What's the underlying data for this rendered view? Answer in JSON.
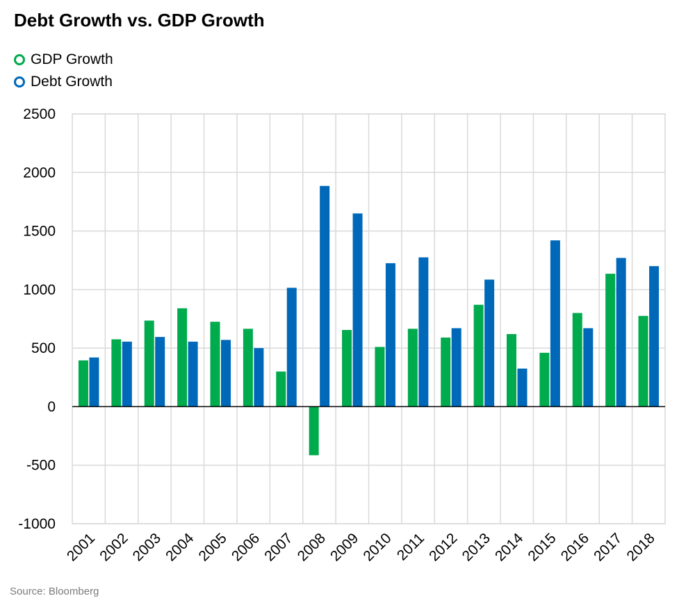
{
  "title": "Debt Growth vs. GDP Growth",
  "source": "Source: Bloomberg",
  "colors": {
    "gdp": "#00ab4e",
    "debt": "#0068b9",
    "grid": "#d9d9d9",
    "axis": "#000000"
  },
  "chart_data": {
    "type": "bar",
    "title": "Debt Growth vs. GDP Growth",
    "xlabel": "",
    "ylabel": "",
    "ylim": [
      -1000,
      2500
    ],
    "yticks": [
      2500,
      2000,
      1500,
      1000,
      500,
      0,
      -500,
      -1000
    ],
    "grid": true,
    "legend_position": "top-left",
    "categories": [
      "2001",
      "2002",
      "2003",
      "2004",
      "2005",
      "2006",
      "2007",
      "2008",
      "2009",
      "2010",
      "2011",
      "2012",
      "2013",
      "2014",
      "2015",
      "2016",
      "2017",
      "2018"
    ],
    "series": [
      {
        "name": "GDP Growth",
        "color": "#00ab4e",
        "values": [
          395,
          575,
          735,
          840,
          725,
          665,
          300,
          -415,
          655,
          510,
          665,
          590,
          870,
          620,
          460,
          800,
          1135,
          775
        ]
      },
      {
        "name": "Debt Growth",
        "color": "#0068b9",
        "values": [
          420,
          555,
          595,
          555,
          570,
          500,
          1015,
          1885,
          1650,
          1225,
          1275,
          670,
          1085,
          325,
          1420,
          670,
          1270,
          1200
        ]
      }
    ]
  }
}
